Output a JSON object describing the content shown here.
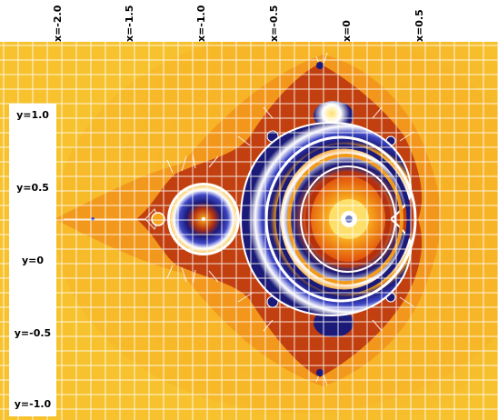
{
  "x_axis": {
    "ticks": [
      {
        "label": "x=-2.0",
        "value": -2.0
      },
      {
        "label": "x=-1.5",
        "value": -1.5
      },
      {
        "label": "x=-1.0",
        "value": -1.0
      },
      {
        "label": "x=-0.5",
        "value": -0.5
      },
      {
        "label": "x=0",
        "value": 0
      },
      {
        "label": "x=0.5",
        "value": 0.5
      }
    ]
  },
  "y_axis": {
    "ticks": [
      {
        "label": "y=1.0",
        "value": 1.0
      },
      {
        "label": "y=0.5",
        "value": 0.5
      },
      {
        "label": "y=0",
        "value": 0
      },
      {
        "label": "y=-0.5",
        "value": -0.5
      },
      {
        "label": "y=-1.0",
        "value": -1.0
      }
    ]
  },
  "colors": {
    "background_orange": "#f7a51c",
    "outer_yellow": "#f6c72f",
    "pale_yellow": "#fde06b",
    "deep_orange": "#e86a10",
    "red_brown": "#b5310e",
    "navy": "#1b1a78",
    "blue": "#3d46c4",
    "white": "#ffffff",
    "grid": "#ffffff"
  }
}
